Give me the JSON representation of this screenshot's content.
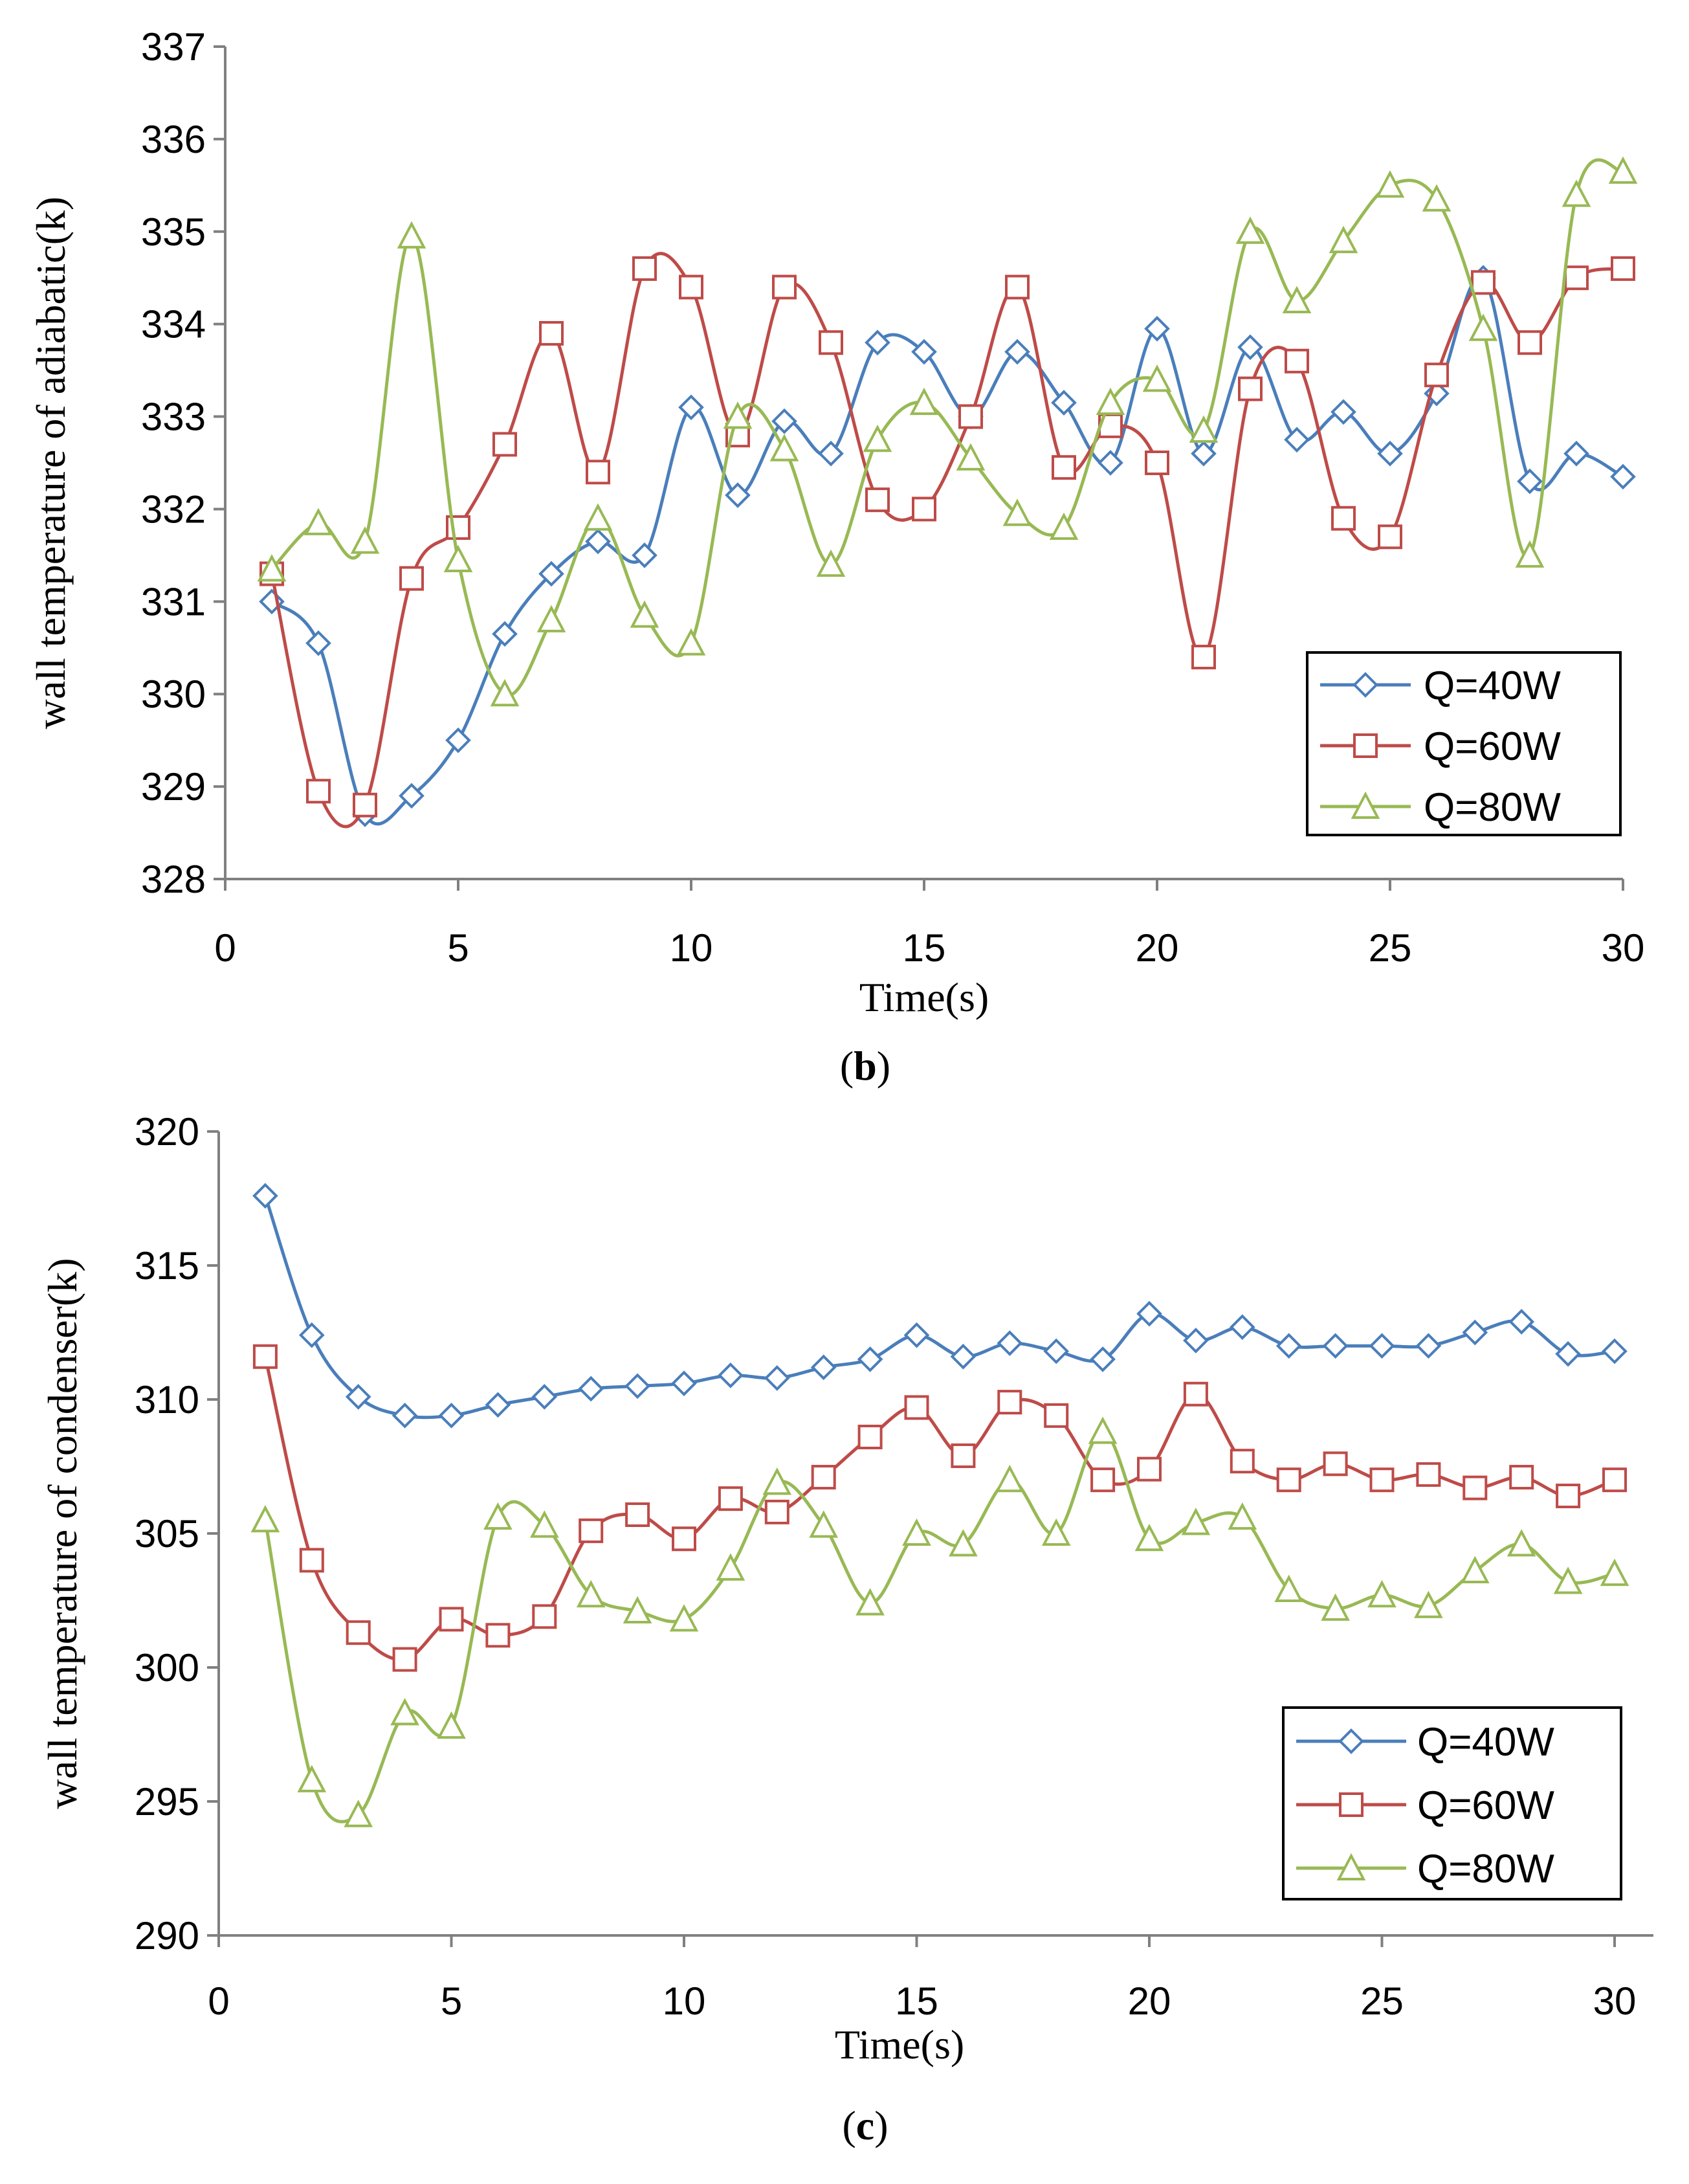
{
  "chart_data": [
    {
      "id": "b",
      "type": "line",
      "panel_label": "b",
      "title": "",
      "xlabel": "Time(s)",
      "ylabel": "wall temperature of adiabatic(k)",
      "xlim": [
        0,
        30
      ],
      "ylim": [
        328,
        337
      ],
      "xticks": [
        0,
        5,
        10,
        15,
        20,
        25,
        30
      ],
      "yticks": [
        328,
        329,
        330,
        331,
        332,
        333,
        334,
        335,
        336,
        337
      ],
      "grid": false,
      "legend_position": "bottom-right",
      "x": [
        1,
        2,
        3,
        4,
        5,
        6,
        7,
        8,
        9,
        10,
        11,
        12,
        13,
        14,
        15,
        16,
        17,
        18,
        19,
        20,
        21,
        22,
        23,
        24,
        25,
        26,
        27,
        28,
        29,
        30
      ],
      "series": [
        {
          "name": "Q=40W",
          "color": "#4A7EBB",
          "marker": "diamond",
          "values": [
            331.0,
            330.55,
            328.7,
            328.9,
            329.5,
            330.65,
            331.3,
            331.65,
            331.5,
            333.1,
            332.15,
            332.95,
            332.6,
            333.8,
            333.7,
            333.0,
            333.7,
            333.15,
            332.5,
            333.95,
            332.6,
            333.75,
            332.75,
            333.05,
            332.6,
            333.25,
            334.5,
            332.3,
            332.6,
            332.35
          ]
        },
        {
          "name": "Q=60W",
          "color": "#BE4B48",
          "marker": "square",
          "values": [
            331.3,
            328.95,
            328.8,
            331.25,
            331.8,
            332.7,
            333.9,
            332.4,
            334.6,
            334.4,
            332.8,
            334.4,
            333.8,
            332.1,
            332.0,
            333.0,
            334.4,
            332.45,
            332.9,
            332.5,
            330.4,
            333.3,
            333.6,
            331.9,
            331.7,
            333.45,
            334.45,
            333.8,
            334.5,
            334.6
          ]
        },
        {
          "name": "Q=80W",
          "color": "#98B954",
          "marker": "triangle",
          "values": [
            331.35,
            331.85,
            331.65,
            334.95,
            331.45,
            330.0,
            330.8,
            331.9,
            330.85,
            330.55,
            333.0,
            332.65,
            331.4,
            332.75,
            333.15,
            332.55,
            331.95,
            331.8,
            333.15,
            333.4,
            332.85,
            335.0,
            334.25,
            334.9,
            335.5,
            335.35,
            333.95,
            331.5,
            335.4,
            335.65
          ]
        }
      ]
    },
    {
      "id": "c",
      "type": "line",
      "panel_label": "c",
      "title": "",
      "xlabel": "Time(s)",
      "ylabel": "wall temperature of condenser(k)",
      "xlim": [
        0,
        30
      ],
      "ylim": [
        290,
        320
      ],
      "xticks": [
        0,
        5,
        10,
        15,
        20,
        25,
        30
      ],
      "yticks": [
        290,
        295,
        300,
        305,
        310,
        315,
        320
      ],
      "grid": false,
      "legend_position": "bottom-right",
      "x": [
        1,
        2,
        3,
        4,
        5,
        6,
        7,
        8,
        9,
        10,
        11,
        12,
        13,
        14,
        15,
        16,
        17,
        18,
        19,
        20,
        21,
        22,
        23,
        24,
        25,
        26,
        27,
        28,
        29,
        30
      ],
      "series": [
        {
          "name": "Q=40W",
          "color": "#4A7EBB",
          "marker": "diamond",
          "values": [
            317.6,
            312.4,
            310.1,
            309.4,
            309.4,
            309.8,
            310.1,
            310.4,
            310.5,
            310.6,
            310.9,
            310.8,
            311.2,
            311.5,
            312.4,
            311.6,
            312.1,
            311.8,
            311.5,
            313.2,
            312.2,
            312.7,
            312.0,
            312.0,
            312.0,
            312.0,
            312.5,
            312.9,
            311.7,
            311.8
          ]
        },
        {
          "name": "Q=60W",
          "color": "#BE4B48",
          "marker": "square",
          "values": [
            311.6,
            304.0,
            301.3,
            300.3,
            301.8,
            301.2,
            301.9,
            305.1,
            305.7,
            304.8,
            306.3,
            305.8,
            307.1,
            308.6,
            309.7,
            307.9,
            309.9,
            309.4,
            307.0,
            307.4,
            310.2,
            307.7,
            307.0,
            307.6,
            307.0,
            307.2,
            306.7,
            307.1,
            306.4,
            307.0
          ]
        },
        {
          "name": "Q=80W",
          "color": "#98B954",
          "marker": "triangle",
          "values": [
            305.5,
            295.8,
            294.5,
            298.3,
            297.8,
            305.6,
            305.3,
            302.7,
            302.1,
            301.8,
            303.7,
            306.9,
            305.3,
            302.4,
            305.0,
            304.6,
            307.0,
            305.0,
            308.8,
            304.8,
            305.4,
            305.6,
            302.9,
            302.2,
            302.7,
            302.3,
            303.6,
            304.6,
            303.2,
            303.5
          ]
        }
      ]
    }
  ]
}
